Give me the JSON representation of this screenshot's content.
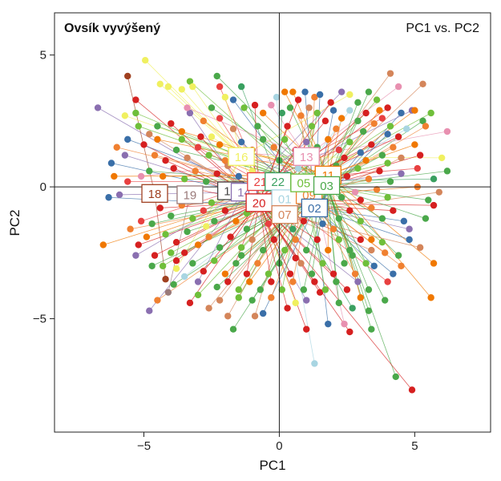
{
  "chart_data": {
    "type": "scatter",
    "title": "Ovsík vyvýšený",
    "subtitle": "PC1 vs. PC2",
    "xlabel": "PC1",
    "ylabel": "PC2",
    "xlim": [
      -8.3,
      7.8
    ],
    "ylim": [
      -9.3,
      6.6
    ],
    "x_ticks": [
      -5,
      0,
      5
    ],
    "y_ticks": [
      -5,
      0,
      5
    ],
    "x_tick_labels": [
      "−5",
      "0",
      "5"
    ],
    "y_tick_labels": [
      "−5",
      "0",
      "5"
    ],
    "grid": false,
    "reference_lines": [
      {
        "axis": "x",
        "value": 0
      },
      {
        "axis": "y",
        "value": 0
      }
    ],
    "group_colors": {
      "01": "#a8d5e2",
      "02": "#3a6fa8",
      "03": "#4aa84a",
      "05": "#6fbf3a",
      "07": "#d4855a",
      "09": "#f08030",
      "11": "#f07800",
      "13": "#e890b0",
      "14": "#8a6fb0",
      "16": "#f0f060",
      "18": "#a04020",
      "19": "#9a7a7a",
      "20": "#d62020",
      "21": "#e84040",
      "22": "#3aa060"
    },
    "centroids": [
      {
        "label": "18",
        "x": -4.6,
        "y": -0.25
      },
      {
        "label": "19",
        "x": -3.3,
        "y": -0.3
      },
      {
        "label": "12",
        "x": -1.8,
        "y": -0.15
      },
      {
        "label": "14",
        "x": -1.3,
        "y": -0.2
      },
      {
        "label": "16",
        "x": -1.4,
        "y": 1.15
      },
      {
        "label": "21",
        "x": -0.7,
        "y": 0.2
      },
      {
        "label": "22",
        "x": -0.05,
        "y": 0.2
      },
      {
        "label": "20",
        "x": -0.75,
        "y": -0.6
      },
      {
        "label": "01",
        "x": 0.2,
        "y": -0.45
      },
      {
        "label": "07",
        "x": 0.2,
        "y": -1.05
      },
      {
        "label": "09",
        "x": 1.1,
        "y": -0.3
      },
      {
        "label": "02",
        "x": 1.3,
        "y": -0.8
      },
      {
        "label": "05",
        "x": 0.9,
        "y": 0.15
      },
      {
        "label": "13",
        "x": 1.0,
        "y": 1.15
      },
      {
        "label": "11",
        "x": 1.8,
        "y": 0.45
      },
      {
        "label": "03",
        "x": 1.75,
        "y": 0.05
      }
    ],
    "points": [
      [
        -6.7,
        3.0,
        "14"
      ],
      [
        -5.6,
        4.2,
        "18"
      ],
      [
        -4.95,
        4.8,
        "16"
      ],
      [
        -5.3,
        3.3,
        "20"
      ],
      [
        -4.4,
        3.9,
        "16"
      ],
      [
        -4.1,
        3.8,
        "16"
      ],
      [
        -3.6,
        3.7,
        "16"
      ],
      [
        -3.3,
        4.0,
        "05"
      ],
      [
        -3.2,
        3.8,
        "16"
      ],
      [
        -2.3,
        4.2,
        "03"
      ],
      [
        -2.2,
        3.8,
        "21"
      ],
      [
        -1.4,
        3.8,
        "22"
      ],
      [
        0.2,
        3.6,
        "11"
      ],
      [
        0.5,
        3.6,
        "11"
      ],
      [
        0.7,
        3.3,
        "20"
      ],
      [
        0.95,
        3.6,
        "02"
      ],
      [
        1.3,
        3.4,
        "09"
      ],
      [
        1.5,
        3.5,
        "02"
      ],
      [
        2.3,
        3.6,
        "14"
      ],
      [
        2.6,
        3.5,
        "16"
      ],
      [
        3.3,
        3.6,
        "03"
      ],
      [
        3.6,
        3.3,
        "05"
      ],
      [
        4.1,
        4.3,
        "07"
      ],
      [
        4.4,
        3.8,
        "13"
      ],
      [
        5.3,
        3.9,
        "07"
      ],
      [
        4.0,
        3.0,
        "20"
      ],
      [
        4.5,
        2.8,
        "02"
      ],
      [
        4.9,
        2.9,
        "14"
      ],
      [
        5.3,
        2.5,
        "03"
      ],
      [
        5.6,
        2.8,
        "05"
      ],
      [
        6.2,
        2.1,
        "13"
      ],
      [
        5.4,
        2.3,
        "09"
      ],
      [
        5.0,
        2.9,
        "11"
      ],
      [
        4.7,
        2.2,
        "01"
      ],
      [
        5.0,
        1.6,
        "11"
      ],
      [
        6.0,
        1.1,
        "16"
      ],
      [
        6.2,
        0.6,
        "03"
      ],
      [
        5.7,
        0.3,
        "22"
      ],
      [
        5.1,
        0.7,
        "21"
      ],
      [
        5.1,
        0.0,
        "09"
      ],
      [
        5.9,
        -0.2,
        "07"
      ],
      [
        5.7,
        -0.7,
        "20"
      ],
      [
        5.4,
        -1.2,
        "03"
      ],
      [
        5.7,
        -2.9,
        "11"
      ],
      [
        5.6,
        -4.2,
        "11"
      ],
      [
        4.8,
        -1.6,
        "14"
      ],
      [
        4.8,
        -2.0,
        "02"
      ],
      [
        4.4,
        -2.6,
        "03"
      ],
      [
        4.2,
        -3.3,
        "02"
      ],
      [
        4.0,
        -3.6,
        "21"
      ],
      [
        3.4,
        -2.0,
        "11"
      ],
      [
        3.5,
        -3.0,
        "02"
      ],
      [
        3.3,
        -4.7,
        "03"
      ],
      [
        2.7,
        -4.6,
        "22"
      ],
      [
        2.6,
        -5.5,
        "20"
      ],
      [
        3.4,
        -5.4,
        "03"
      ],
      [
        2.4,
        -5.2,
        "13"
      ],
      [
        1.8,
        -5.2,
        "02"
      ],
      [
        1.0,
        -5.4,
        "20"
      ],
      [
        1.3,
        -6.7,
        "01"
      ],
      [
        4.3,
        -7.2,
        "03"
      ],
      [
        4.9,
        -7.7,
        "20"
      ],
      [
        1.0,
        -4.3,
        "14"
      ],
      [
        1.5,
        -4.0,
        "20"
      ],
      [
        0.6,
        -4.4,
        "16"
      ],
      [
        -1.0,
        -4.3,
        "03"
      ],
      [
        -1.5,
        -4.2,
        "05"
      ],
      [
        -2.2,
        -4.3,
        "07"
      ],
      [
        -1.9,
        -4.9,
        "07"
      ],
      [
        -1.7,
        -5.4,
        "03"
      ],
      [
        -0.9,
        -4.9,
        "07"
      ],
      [
        -0.6,
        -4.8,
        "02"
      ],
      [
        -3.5,
        -3.4,
        "01"
      ],
      [
        -3.0,
        -4.1,
        "05"
      ],
      [
        -4.1,
        -4.0,
        "19"
      ],
      [
        -4.5,
        -4.3,
        "09"
      ],
      [
        -4.8,
        -4.7,
        "14"
      ],
      [
        -4.2,
        -3.5,
        "18"
      ],
      [
        -3.8,
        -3.1,
        "16"
      ],
      [
        -3.5,
        -2.5,
        "20"
      ],
      [
        -6.5,
        -2.2,
        "11"
      ],
      [
        -5.2,
        -2.2,
        "20"
      ],
      [
        -4.9,
        -1.9,
        "11"
      ],
      [
        -5.1,
        -1.3,
        "21"
      ],
      [
        -5.9,
        -0.3,
        "14"
      ],
      [
        -5.6,
        0.2,
        "21"
      ],
      [
        -5.1,
        0.4,
        "13"
      ],
      [
        -6.2,
        0.9,
        "02"
      ],
      [
        -5.7,
        1.2,
        "14"
      ],
      [
        -5.0,
        1.6,
        "20"
      ],
      [
        -5.6,
        1.8,
        "02"
      ],
      [
        -5.2,
        2.3,
        "05"
      ],
      [
        -5.7,
        2.7,
        "16"
      ],
      [
        -4.8,
        2.0,
        "07"
      ],
      [
        -4.5,
        2.3,
        "03"
      ],
      [
        -4.0,
        2.4,
        "20"
      ],
      [
        -3.6,
        2.1,
        "11"
      ],
      [
        -3.3,
        2.8,
        "14"
      ],
      [
        -2.8,
        2.5,
        "09"
      ],
      [
        -2.5,
        3.0,
        "03"
      ],
      [
        -2.2,
        2.6,
        "21"
      ],
      [
        -1.7,
        3.3,
        "02"
      ],
      [
        -1.3,
        3.0,
        "05"
      ],
      [
        -0.9,
        3.1,
        "20"
      ],
      [
        -0.6,
        2.8,
        "11"
      ],
      [
        -0.3,
        3.1,
        "13"
      ],
      [
        0.1,
        2.8,
        "22"
      ],
      [
        0.4,
        3.0,
        "03"
      ],
      [
        0.8,
        2.7,
        "09"
      ],
      [
        1.1,
        3.0,
        "07"
      ],
      [
        1.4,
        2.8,
        "05"
      ],
      [
        1.7,
        2.5,
        "20"
      ],
      [
        2.0,
        2.9,
        "02"
      ],
      [
        2.3,
        2.6,
        "11"
      ],
      [
        2.6,
        2.9,
        "01"
      ],
      [
        2.9,
        2.5,
        "03"
      ],
      [
        3.2,
        2.8,
        "20"
      ],
      [
        3.5,
        2.4,
        "09"
      ],
      [
        3.8,
        2.6,
        "21"
      ],
      [
        4.1,
        2.3,
        "05"
      ],
      [
        -4.6,
        1.2,
        "09"
      ],
      [
        -4.2,
        1.0,
        "20"
      ],
      [
        -3.8,
        1.4,
        "03"
      ],
      [
        -3.4,
        1.1,
        "07"
      ],
      [
        -3.0,
        1.5,
        "21"
      ],
      [
        -2.6,
        1.2,
        "05"
      ],
      [
        -2.2,
        1.6,
        "11"
      ],
      [
        -1.8,
        1.3,
        "13"
      ],
      [
        -1.4,
        1.7,
        "02"
      ],
      [
        -1.0,
        1.4,
        "20"
      ],
      [
        -0.6,
        1.8,
        "03"
      ],
      [
        -0.2,
        1.5,
        "09"
      ],
      [
        0.2,
        1.8,
        "05"
      ],
      [
        0.6,
        1.4,
        "20"
      ],
      [
        1.0,
        1.7,
        "14"
      ],
      [
        1.4,
        1.5,
        "03"
      ],
      [
        1.8,
        1.8,
        "11"
      ],
      [
        2.2,
        1.4,
        "21"
      ],
      [
        2.6,
        1.7,
        "05"
      ],
      [
        3.0,
        1.3,
        "02"
      ],
      [
        3.4,
        1.6,
        "20"
      ],
      [
        3.8,
        1.2,
        "03"
      ],
      [
        4.2,
        1.5,
        "09"
      ],
      [
        4.5,
        1.1,
        "07"
      ],
      [
        -4.8,
        0.6,
        "03"
      ],
      [
        -4.3,
        0.4,
        "11"
      ],
      [
        -3.9,
        0.7,
        "20"
      ],
      [
        -3.5,
        0.3,
        "05"
      ],
      [
        -3.1,
        0.6,
        "09"
      ],
      [
        -2.7,
        0.2,
        "03"
      ],
      [
        -2.3,
        0.5,
        "20"
      ],
      [
        -1.9,
        0.8,
        "07"
      ],
      [
        -1.5,
        0.4,
        "02"
      ],
      [
        2.1,
        0.8,
        "03"
      ],
      [
        2.5,
        0.4,
        "20"
      ],
      [
        2.9,
        0.7,
        "05"
      ],
      [
        3.3,
        0.3,
        "09"
      ],
      [
        3.7,
        0.6,
        "20"
      ],
      [
        4.1,
        0.2,
        "03"
      ],
      [
        4.5,
        0.5,
        "14"
      ],
      [
        -4.4,
        -0.8,
        "20"
      ],
      [
        -4.0,
        -1.1,
        "03"
      ],
      [
        -3.6,
        -0.7,
        "09"
      ],
      [
        -3.2,
        -1.2,
        "05"
      ],
      [
        -2.8,
        -0.9,
        "21"
      ],
      [
        -2.4,
        -1.3,
        "03"
      ],
      [
        -2.0,
        -0.9,
        "20"
      ],
      [
        -1.6,
        -1.3,
        "11"
      ],
      [
        -1.2,
        -1.0,
        "05"
      ],
      [
        2.2,
        -1.2,
        "03"
      ],
      [
        2.6,
        -0.9,
        "20"
      ],
      [
        3.0,
        -1.3,
        "05"
      ],
      [
        3.4,
        -0.8,
        "09"
      ],
      [
        3.8,
        -1.2,
        "03"
      ],
      [
        4.2,
        -0.9,
        "20"
      ],
      [
        4.6,
        -1.3,
        "02"
      ],
      [
        -4.2,
        -1.8,
        "05"
      ],
      [
        -3.8,
        -2.1,
        "20"
      ],
      [
        -3.4,
        -1.7,
        "03"
      ],
      [
        -3.0,
        -2.2,
        "11"
      ],
      [
        -2.6,
        -1.9,
        "09"
      ],
      [
        -2.2,
        -2.3,
        "03"
      ],
      [
        -1.8,
        -1.9,
        "20"
      ],
      [
        -1.4,
        -2.3,
        "05"
      ],
      [
        -1.0,
        -2.0,
        "07"
      ],
      [
        -0.6,
        -2.4,
        "03"
      ],
      [
        -0.2,
        -2.0,
        "20"
      ],
      [
        0.2,
        -2.4,
        "05"
      ],
      [
        0.6,
        -2.0,
        "09"
      ],
      [
        1.0,
        -2.4,
        "03"
      ],
      [
        1.4,
        -2.0,
        "20"
      ],
      [
        1.8,
        -2.4,
        "11"
      ],
      [
        2.2,
        -2.0,
        "05"
      ],
      [
        2.6,
        -2.4,
        "03"
      ],
      [
        3.0,
        -2.0,
        "20"
      ],
      [
        3.4,
        -2.4,
        "07"
      ],
      [
        3.8,
        -2.1,
        "05"
      ],
      [
        -3.2,
        -2.9,
        "03"
      ],
      [
        -2.8,
        -3.2,
        "20"
      ],
      [
        -2.4,
        -2.8,
        "05"
      ],
      [
        -2.0,
        -3.3,
        "11"
      ],
      [
        -1.6,
        -2.9,
        "03"
      ],
      [
        -1.2,
        -3.3,
        "20"
      ],
      [
        -0.8,
        -2.9,
        "09"
      ],
      [
        -0.4,
        -3.3,
        "05"
      ],
      [
        0.0,
        -2.9,
        "03"
      ],
      [
        0.4,
        -3.3,
        "20"
      ],
      [
        0.8,
        -2.9,
        "07"
      ],
      [
        1.2,
        -3.3,
        "03"
      ],
      [
        1.6,
        -2.9,
        "05"
      ],
      [
        2.0,
        -3.3,
        "20"
      ],
      [
        2.4,
        -2.9,
        "03"
      ],
      [
        2.8,
        -3.3,
        "09"
      ],
      [
        3.2,
        -2.9,
        "05"
      ],
      [
        -2.3,
        -3.8,
        "03"
      ],
      [
        -1.9,
        -3.6,
        "20"
      ],
      [
        -1.5,
        -3.9,
        "05"
      ],
      [
        -1.1,
        -3.6,
        "11"
      ],
      [
        -0.7,
        -3.9,
        "03"
      ],
      [
        -0.3,
        -3.6,
        "20"
      ],
      [
        0.1,
        -3.9,
        "05"
      ],
      [
        0.5,
        -3.6,
        "09"
      ],
      [
        0.9,
        -3.9,
        "03"
      ],
      [
        1.3,
        -3.6,
        "20"
      ],
      [
        1.7,
        -3.9,
        "05"
      ],
      [
        2.1,
        -3.6,
        "03"
      ],
      [
        2.5,
        -3.9,
        "20"
      ],
      [
        2.9,
        -3.6,
        "14"
      ],
      [
        3.3,
        -3.9,
        "03"
      ],
      [
        -4.7,
        -3.0,
        "03"
      ],
      [
        -5.3,
        -2.6,
        "14"
      ],
      [
        -4.6,
        -2.6,
        "20"
      ],
      [
        -4.0,
        -2.5,
        "05"
      ],
      [
        -5.5,
        -1.6,
        "09"
      ],
      [
        -4.7,
        -1.4,
        "03"
      ],
      [
        -2.7,
        -1.5,
        "16"
      ],
      [
        -1.0,
        0.6,
        "16"
      ],
      [
        0.7,
        0.7,
        "01"
      ],
      [
        1.5,
        0.1,
        "03"
      ],
      [
        0.5,
        -1.6,
        "22"
      ],
      [
        -0.4,
        -1.4,
        "21"
      ],
      [
        1.6,
        -1.4,
        "02"
      ],
      [
        -2.1,
        -0.3,
        "14"
      ],
      [
        2.8,
        -0.2,
        "13"
      ],
      [
        4.0,
        -0.4,
        "05"
      ],
      [
        -3.4,
        3.0,
        "13"
      ],
      [
        -2.0,
        3.4,
        "16"
      ],
      [
        -0.1,
        3.4,
        "01"
      ],
      [
        1.9,
        3.2,
        "20"
      ],
      [
        2.9,
        3.2,
        "03"
      ],
      [
        3.7,
        2.9,
        "11"
      ],
      [
        4.4,
        1.9,
        "20"
      ],
      [
        -5.3,
        2.8,
        "05"
      ],
      [
        -6.0,
        1.5,
        "09"
      ],
      [
        -6.1,
        0.4,
        "11"
      ],
      [
        -6.3,
        -0.4,
        "02"
      ],
      [
        5.2,
        1.2,
        "20"
      ],
      [
        5.5,
        -0.5,
        "03"
      ],
      [
        5.2,
        -2.3,
        "07"
      ],
      [
        4.5,
        -3.0,
        "09"
      ],
      [
        3.9,
        -4.3,
        "03"
      ],
      [
        3.0,
        -4.2,
        "11"
      ],
      [
        2.2,
        -4.4,
        "03"
      ],
      [
        0.3,
        -4.6,
        "20"
      ],
      [
        -0.3,
        -4.2,
        "09"
      ],
      [
        -2.6,
        -4.6,
        "07"
      ],
      [
        -3.3,
        -4.4,
        "20"
      ],
      [
        -3.9,
        -3.7,
        "03"
      ],
      [
        -4.3,
        -3.0,
        "05"
      ],
      [
        -3.0,
        -3.6,
        "14"
      ],
      [
        -2.5,
        1.9,
        "16"
      ],
      [
        -1.7,
        2.2,
        "07"
      ],
      [
        -0.8,
        2.3,
        "03"
      ],
      [
        0.3,
        2.3,
        "20"
      ],
      [
        1.2,
        2.3,
        "05"
      ],
      [
        2.1,
        2.2,
        "09"
      ],
      [
        3.1,
        2.1,
        "03"
      ],
      [
        4.0,
        2.0,
        "02"
      ],
      [
        -4.5,
        1.8,
        "11"
      ],
      [
        -3.6,
        1.8,
        "05"
      ],
      [
        -2.9,
        1.9,
        "20"
      ],
      [
        -2.0,
        1.0,
        "09"
      ],
      [
        0.0,
        1.0,
        "03"
      ],
      [
        2.4,
        1.1,
        "20"
      ],
      [
        3.2,
        1.0,
        "11"
      ],
      [
        4.0,
        0.9,
        "05"
      ],
      [
        -3.0,
        -0.1,
        "20"
      ],
      [
        -2.5,
        -0.6,
        "05"
      ],
      [
        2.3,
        -0.4,
        "03"
      ],
      [
        3.0,
        -0.5,
        "20"
      ],
      [
        3.6,
        -0.1,
        "09"
      ],
      [
        -1.2,
        -1.6,
        "03"
      ],
      [
        -0.2,
        -1.0,
        "05"
      ],
      [
        0.9,
        -1.3,
        "20"
      ],
      [
        2.0,
        -1.6,
        "09"
      ],
      [
        -3.8,
        -2.8,
        "20"
      ],
      [
        -1.4,
        -2.6,
        "03"
      ],
      [
        0.6,
        -2.7,
        "20"
      ],
      [
        2.7,
        -2.6,
        "03"
      ],
      [
        3.9,
        -2.5,
        "09"
      ]
    ]
  }
}
